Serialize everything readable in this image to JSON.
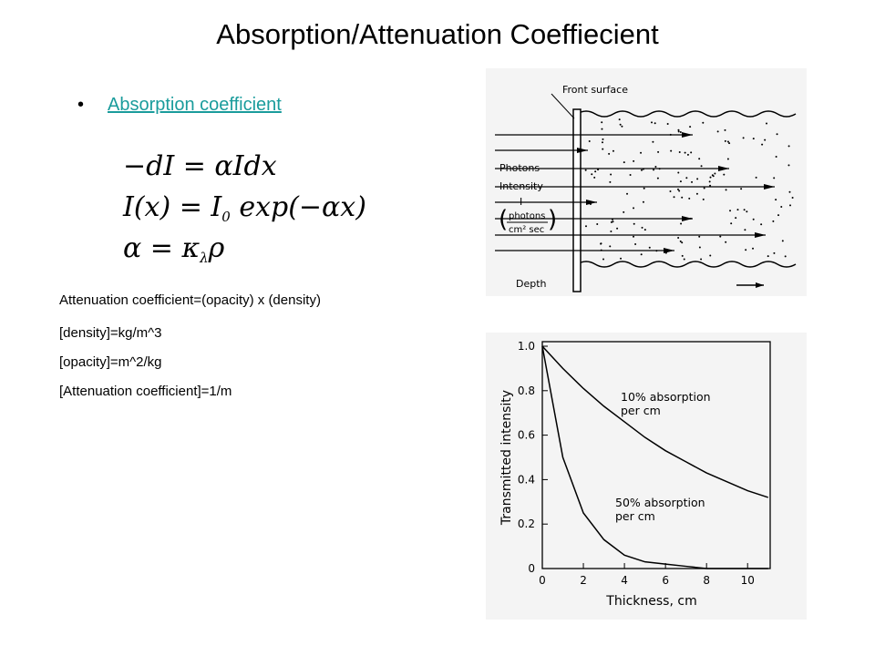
{
  "title": "Absorption/Attenuation Coeffiecient",
  "bullet": "Absorption coefficient",
  "equations": [
    [
      "−dI = αIdx"
    ],
    [
      "I(x) = I",
      "0",
      " exp(−αx)"
    ],
    [
      "α = κ",
      "λ",
      "ρ"
    ]
  ],
  "notes": [
    "Attenuation coefficient=(opacity) x (density)",
    "[density]=kg/m^3",
    "[opacity]=m^2/kg",
    "[Attenuation coefficient]=1/m"
  ],
  "diagram": {
    "front_surface": "Front surface",
    "photons": "Photons",
    "intensity": "Intensity",
    "symbol": "I",
    "unit_top": "photons",
    "unit_bottom": "cm² sec",
    "depth": "Depth"
  },
  "chart_data": {
    "type": "line",
    "x_label": "Thickness, cm",
    "y_label": "Transmitted intensity",
    "x": [
      0,
      1,
      2,
      3,
      4,
      5,
      6,
      7,
      8,
      9,
      10,
      11
    ],
    "series": [
      {
        "name": "10% absorption per cm",
        "color": "#000000",
        "values": [
          1,
          0.9,
          0.81,
          0.73,
          0.66,
          0.59,
          0.53,
          0.48,
          0.43,
          0.39,
          0.35,
          0.32
        ]
      },
      {
        "name": "50% absorption per cm",
        "color": "#000000",
        "values": [
          1,
          0.5,
          0.25,
          0.13,
          0.06,
          0.03,
          0.02,
          0.01,
          0,
          0,
          0,
          0
        ]
      }
    ],
    "xlim": [
      0,
      11.1
    ],
    "ylim": [
      0,
      1
    ],
    "xticks": [
      0,
      2,
      4,
      6,
      8,
      10
    ],
    "yticks": [
      0,
      0.2,
      0.4,
      0.6,
      0.8,
      {
        "value": 1,
        "label": "1.0"
      }
    ]
  }
}
